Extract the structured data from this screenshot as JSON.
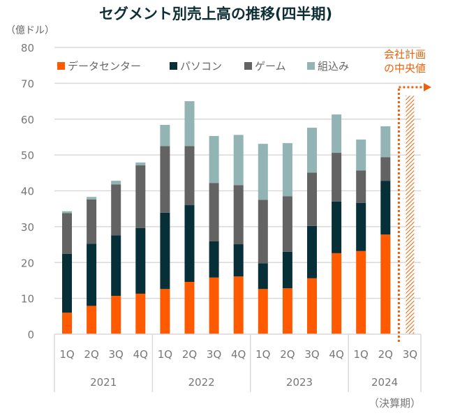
{
  "chart_data": {
    "type": "bar",
    "stacked": true,
    "title": "セグメント別売上高の推移(四半期)",
    "ylabel": "（億ドル）",
    "xlabel": "（決算期）",
    "ylim": [
      0,
      80
    ],
    "yticks": [
      0,
      10,
      20,
      30,
      40,
      50,
      60,
      70,
      80
    ],
    "grid": true,
    "legend_position": "top",
    "categories": [
      "1Q",
      "2Q",
      "3Q",
      "4Q",
      "1Q",
      "2Q",
      "3Q",
      "4Q",
      "1Q",
      "2Q",
      "3Q",
      "4Q",
      "1Q",
      "2Q",
      "3Q"
    ],
    "groups": [
      {
        "label": "2021",
        "count": 4
      },
      {
        "label": "2022",
        "count": 4
      },
      {
        "label": "2023",
        "count": 4
      },
      {
        "label": "2024",
        "count": 3
      }
    ],
    "series": [
      {
        "name": "データセンター",
        "color": "#ff5a00",
        "values": [
          6.0,
          7.9,
          10.7,
          11.3,
          12.6,
          14.6,
          15.8,
          16.1,
          12.6,
          12.8,
          15.6,
          22.6,
          23.2,
          27.8,
          null
        ]
      },
      {
        "name": "パソコン",
        "color": "#062f38",
        "values": [
          16.4,
          17.3,
          16.9,
          18.3,
          21.3,
          21.4,
          10.1,
          9.0,
          7.2,
          10.2,
          14.6,
          14.4,
          13.4,
          15.0,
          null
        ]
      },
      {
        "name": "ゲーム",
        "color": "#636363",
        "values": [
          11.4,
          12.4,
          14.2,
          17.5,
          18.6,
          16.5,
          16.3,
          16.5,
          17.7,
          15.5,
          14.9,
          13.6,
          9.1,
          6.6,
          null
        ]
      },
      {
        "name": "組込み",
        "color": "#93b4b5",
        "values": [
          0.5,
          0.7,
          1.0,
          0.8,
          5.9,
          12.5,
          13.1,
          14.0,
          15.6,
          14.8,
          12.5,
          10.7,
          8.6,
          8.6,
          null
        ]
      }
    ],
    "forecast": {
      "category_index": 14,
      "value": 66.5,
      "style": "hatched",
      "color": "#f0600a",
      "annotation": [
        "会社計画",
        "の中央値"
      ]
    }
  }
}
